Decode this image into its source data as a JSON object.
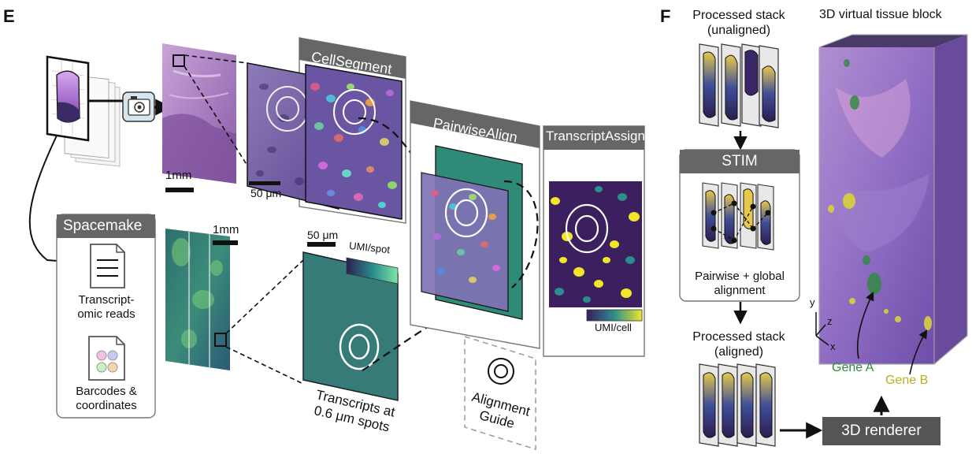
{
  "panel_e": {
    "label": "E",
    "scale_1mm_he": "1mm",
    "scale_50um_cell": "50 μm",
    "scale_1mm_st": "1mm",
    "scale_50um_st": "50 μm",
    "umi_spot": "UMI/spot",
    "umi_cell": "UMI/cell",
    "transcripts_caption": [
      "Transcripts at",
      "0.6 μm spots"
    ],
    "spacemake": {
      "title": "Spacemake",
      "reads": [
        "Transcript-",
        "omic reads"
      ],
      "barcodes": [
        "Barcodes &",
        "coordinates"
      ]
    },
    "cellsegment": "CellSegment",
    "pairwisealign": "PairwiseAlign",
    "transcriptassign": "TranscriptAssign",
    "alignment_guide": [
      "Alignment",
      "Guide"
    ]
  },
  "panel_f": {
    "label": "F",
    "processed_unaligned": [
      "Processed stack",
      "(unaligned)"
    ],
    "block_title": "3D virtual tissue block",
    "stim": "STIM",
    "stim_caption": [
      "Pairwise + global",
      "alignment"
    ],
    "processed_aligned": [
      "Processed stack",
      "(aligned)"
    ],
    "renderer": "3D renderer",
    "axes": {
      "y": "y",
      "z": "z",
      "x": "x"
    },
    "gene_a": "Gene A",
    "gene_b": "Gene B"
  },
  "colors": {
    "he_purple": "#a77fc4",
    "header_gray": "#666666",
    "gene_a": "#2e8b3e",
    "gene_b": "#c9c12a",
    "viridis_dark": "#3b1f5e",
    "viridis_light": "#6fe0a8"
  },
  "icons": [
    "camera-icon",
    "document-icon",
    "barcode-icon",
    "alignment-guide-icon"
  ]
}
